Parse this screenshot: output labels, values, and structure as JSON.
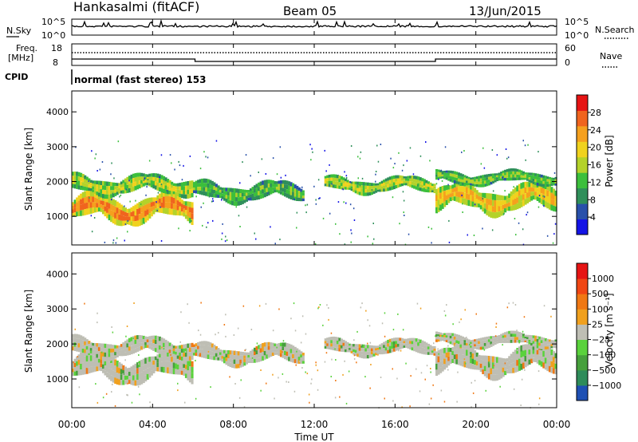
{
  "header": {
    "station": "Hankasalmi (fitACF)",
    "beam": "Beam 05",
    "date": "13/Jun/2015",
    "cpid_label": "CPID",
    "cpid_text": "normal (fast stereo) 153"
  },
  "chart_data": [
    {
      "type": "line",
      "name": "noise-panel",
      "left_label": "N.Sky",
      "right_label": "N.Search",
      "left_ticks": [
        "10^5",
        "10^0"
      ],
      "right_ticks": [
        "10^5",
        "10^0"
      ],
      "x_range_hours": [
        0,
        24
      ],
      "log_y": true,
      "ylim_exponent": [
        0,
        5
      ]
    },
    {
      "type": "line",
      "name": "freq-panel",
      "left_label_lines": [
        "Freq.",
        "[MHz]"
      ],
      "right_label": "Nave",
      "left_ticks": [
        "18",
        "8"
      ],
      "right_ticks": [
        "60",
        "0"
      ],
      "freq_steps": [
        {
          "start": 0,
          "end": 6.1,
          "level": "high"
        },
        {
          "start": 6.1,
          "end": 18.0,
          "level": "low"
        },
        {
          "start": 18.0,
          "end": 24,
          "level": "high"
        }
      ]
    },
    {
      "type": "heatmap",
      "name": "power",
      "ylabel": "Slant Range [km]",
      "yticks": [
        "1000",
        "2000",
        "3000",
        "4000"
      ],
      "ylim": [
        180,
        4600
      ],
      "colorbar_label": "Power [dB]",
      "colorbar_ticks": [
        "4",
        "8",
        "12",
        "16",
        "20",
        "24",
        "28"
      ],
      "colorbar_range": [
        0,
        32
      ],
      "colors": [
        "#1414e6",
        "#2850aa",
        "#2f8f5a",
        "#3cbf3c",
        "#b4d22a",
        "#f0d21e",
        "#f5a01e",
        "#f0641e",
        "#e61414"
      ],
      "bands": [
        {
          "start": 0.0,
          "end": 6.0,
          "center": 1200,
          "width": 700,
          "level": 0.85
        },
        {
          "start": 0.0,
          "end": 6.0,
          "center": 1900,
          "width": 500,
          "level": 0.55
        },
        {
          "start": 6.0,
          "end": 11.5,
          "center": 1700,
          "width": 500,
          "level": 0.4
        },
        {
          "start": 12.5,
          "end": 18.0,
          "center": 1900,
          "width": 400,
          "level": 0.55
        },
        {
          "start": 18.0,
          "end": 24.0,
          "center": 1500,
          "width": 700,
          "level": 0.7
        },
        {
          "start": 18.0,
          "end": 24.0,
          "center": 2100,
          "width": 350,
          "level": 0.45
        }
      ]
    },
    {
      "type": "heatmap",
      "name": "velocity",
      "ylabel": "Slant Range [km]",
      "yticks": [
        "1000",
        "2000",
        "3000",
        "4000"
      ],
      "ylim": [
        180,
        4600
      ],
      "colorbar_label": "Velocity [m s⁻¹]",
      "colorbar_ticks": [
        "1000",
        "500",
        "100",
        "25",
        "−25",
        "−100",
        "−500",
        "−1000"
      ],
      "colors": [
        "#1e50b4",
        "#2e8c5a",
        "#46a03c",
        "#5ad23c",
        "#bebeb4",
        "#f0a01e",
        "#f07814",
        "#f04614",
        "#e61414"
      ],
      "bands": [
        {
          "start": 0.0,
          "end": 6.0,
          "center": 1300,
          "width": 700,
          "level": 0.5
        },
        {
          "start": 0.0,
          "end": 6.0,
          "center": 1900,
          "width": 500,
          "level": 0.5
        },
        {
          "start": 6.0,
          "end": 11.5,
          "center": 1700,
          "width": 500,
          "level": 0.5
        },
        {
          "start": 12.5,
          "end": 18.0,
          "center": 1900,
          "width": 400,
          "level": 0.5
        },
        {
          "start": 18.0,
          "end": 24.0,
          "center": 1500,
          "width": 700,
          "level": 0.5
        },
        {
          "start": 18.0,
          "end": 24.0,
          "center": 2100,
          "width": 350,
          "level": 0.5
        }
      ]
    }
  ],
  "x_axis": {
    "label": "Time UT",
    "ticks": [
      "00:00",
      "04:00",
      "08:00",
      "12:00",
      "16:00",
      "20:00",
      "00:00"
    ]
  }
}
